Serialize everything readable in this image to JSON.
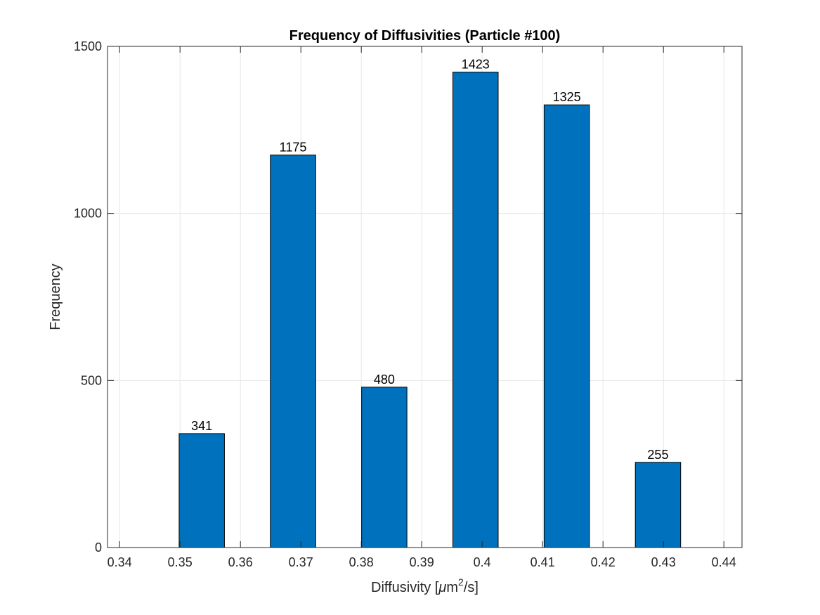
{
  "chart_data": {
    "type": "bar",
    "title": "Frequency of Diffusivities (Particle #100)",
    "xlabel_prefix": "Diffusivity [",
    "xlabel_mu": "μ",
    "xlabel_m": "m",
    "xlabel_sup": "2",
    "xlabel_suffix": "/s]",
    "ylabel": "Frequency",
    "xlim": [
      0.338,
      0.443
    ],
    "ylim": [
      0,
      1500
    ],
    "xticks": [
      0.34,
      0.35,
      0.36,
      0.37,
      0.38,
      0.39,
      0.4,
      0.41,
      0.42,
      0.43,
      0.44
    ],
    "xtick_labels": [
      "0.34",
      "0.35",
      "0.36",
      "0.37",
      "0.38",
      "0.39",
      "0.4",
      "0.41",
      "0.42",
      "0.43",
      "0.44"
    ],
    "yticks": [
      0,
      500,
      1000,
      1500
    ],
    "ytick_labels": [
      "0",
      "500",
      "1000",
      "1500"
    ],
    "bin_width": 0.0075,
    "bars": [
      {
        "x": 0.3536,
        "value": 341,
        "label": "341"
      },
      {
        "x": 0.3687,
        "value": 1175,
        "label": "1175"
      },
      {
        "x": 0.3838,
        "value": 480,
        "label": "480"
      },
      {
        "x": 0.3989,
        "value": 1423,
        "label": "1423"
      },
      {
        "x": 0.414,
        "value": 1325,
        "label": "1325"
      },
      {
        "x": 0.4291,
        "value": 255,
        "label": "255"
      }
    ],
    "grid": true,
    "bar_color": "#0072BD",
    "edge_color": "#000000",
    "grid_color": "#e6e6e6",
    "axis_color": "#262626"
  }
}
